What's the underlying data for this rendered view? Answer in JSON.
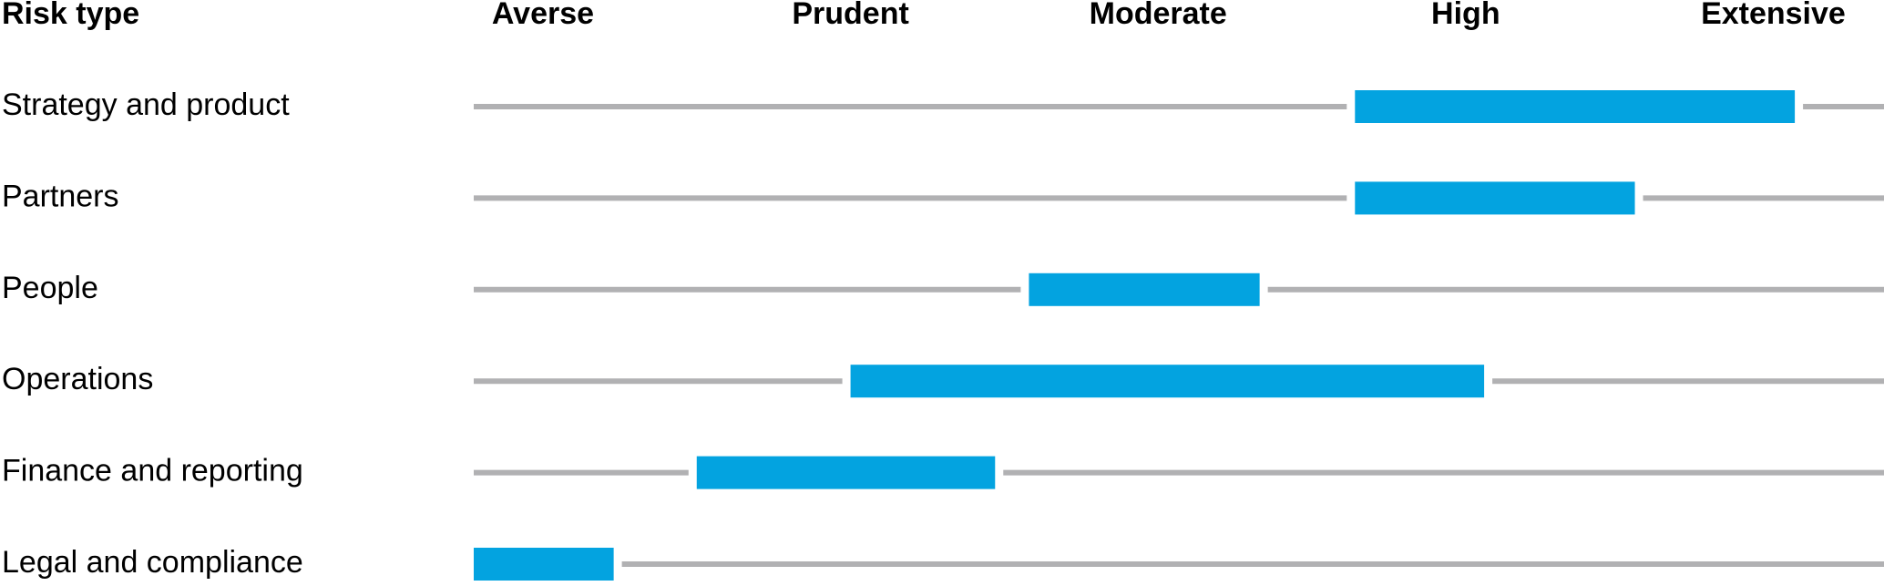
{
  "chart_data": {
    "type": "range-bar",
    "row_header": "Risk type",
    "categories": [
      "Strategy and product",
      "Partners",
      "People",
      "Operations",
      "Finance and reporting",
      "Legal and compliance"
    ],
    "starts": [
      2.64,
      2.64,
      1.58,
      1.0,
      0.5,
      -0.225
    ],
    "ends": [
      4.07,
      3.55,
      2.33,
      3.06,
      1.47,
      0.23
    ],
    "color": "#03a3e0",
    "track_color": "#b1b1b3",
    "xlim": [
      -0.225,
      4.36
    ],
    "xticks": [
      {
        "value": 0,
        "label": "Averse"
      },
      {
        "value": 1,
        "label": "Prudent"
      },
      {
        "value": 2,
        "label": "Moderate"
      },
      {
        "value": 3,
        "label": "High"
      },
      {
        "value": 4,
        "label": "Extensive"
      }
    ]
  }
}
